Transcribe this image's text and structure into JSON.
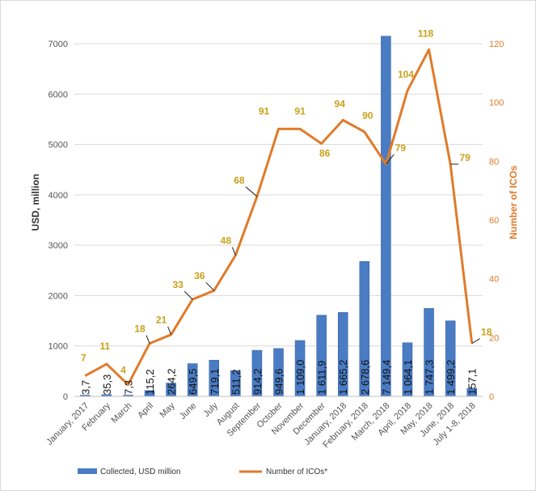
{
  "chart_data": {
    "type": "bar",
    "categories": [
      "January, 2017",
      "February",
      "March",
      "April",
      "May",
      "June",
      "July",
      "August",
      "September",
      "October",
      "November",
      "December",
      "January, 2018",
      "February, 2018",
      "March, 2018",
      "April, 2018",
      "May, 2018",
      "June, 2018",
      "July 1-8, 2018"
    ],
    "series": [
      {
        "name": "Collected, USD million",
        "type": "bar",
        "axis": "left",
        "values": [
          3.7,
          35.3,
          7.3,
          115.2,
          264.2,
          649.5,
          719.1,
          511.2,
          914.2,
          949.6,
          1109.0,
          1611.9,
          1665.2,
          2678.6,
          7149.4,
          1064.1,
          1747.3,
          1499.2,
          157.1
        ],
        "labels": [
          "3,7",
          "35,3",
          "7,3",
          "115,2",
          "264,2",
          "649,5",
          "719,1",
          "511,2",
          "914,2",
          "949,6",
          "1 109,0",
          "1 611,9",
          "1 665,2",
          "2 678,6",
          "7 149,4",
          "1 064,1",
          "1 747,3",
          "1 499,2",
          "157,1"
        ],
        "color": "#4a7cc4"
      },
      {
        "name": "Number of ICOs*",
        "type": "line",
        "axis": "right",
        "values": [
          7,
          11,
          4,
          18,
          21,
          33,
          36,
          48,
          68,
          91,
          91,
          86,
          94,
          90,
          79,
          104,
          118,
          79,
          18
        ],
        "labels": [
          "7",
          "11",
          "4",
          "18",
          "21",
          "33",
          "36",
          "48",
          "68",
          "91",
          "91",
          "86",
          "94",
          "90",
          "79",
          "104",
          "118",
          "79",
          "18"
        ],
        "color": "#e07b2a"
      }
    ],
    "ylabel": "USD, million",
    "y2label": "Number of ICOs",
    "ylim": [
      0,
      7000
    ],
    "y2lim": [
      0,
      120
    ],
    "yticks": [
      "0",
      "1000",
      "2000",
      "3000",
      "4000",
      "5000",
      "6000",
      "7000"
    ],
    "y2ticks": [
      "0",
      "20",
      "40",
      "60",
      "80",
      "100",
      "120"
    ],
    "grid": true,
    "legend": "bottom"
  },
  "colors": {
    "bar": "#4a7cc4",
    "line": "#e07b2a",
    "line_label": "#c9a11a",
    "grid": "#d9d9d9"
  }
}
